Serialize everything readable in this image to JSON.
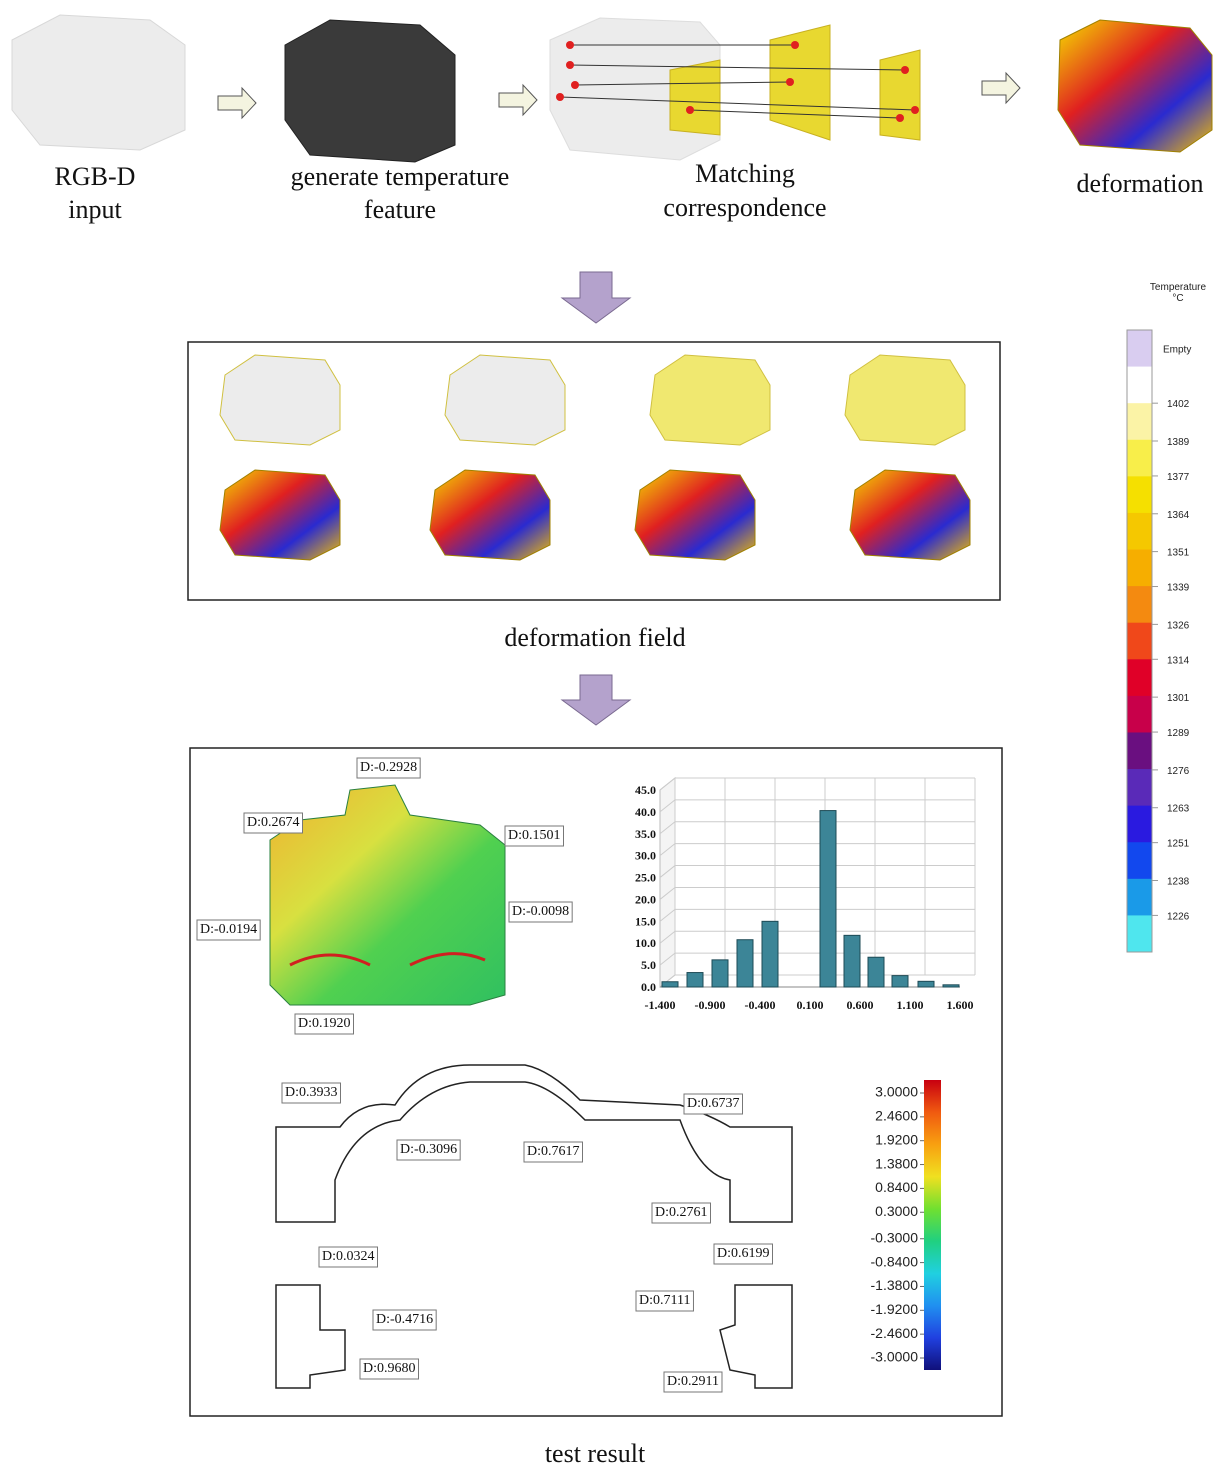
{
  "pipeline": {
    "steps": [
      {
        "lines": [
          "RGB-D",
          "input"
        ]
      },
      {
        "lines": [
          "generate temperature",
          "feature"
        ]
      },
      {
        "lines": [
          "Matching",
          "correspondence"
        ]
      },
      {
        "lines": [
          "deformation"
        ]
      }
    ]
  },
  "deformation_field": {
    "caption": "deformation field"
  },
  "temperature_scale": {
    "title": [
      "Temperature",
      "°C"
    ],
    "empty_label": "Empty",
    "ticks": [
      1402,
      1389,
      1377,
      1364,
      1351,
      1339,
      1326,
      1314,
      1301,
      1289,
      1276,
      1263,
      1251,
      1238,
      1226
    ],
    "colors": [
      "#d9cdf0",
      "#ffffff",
      "#fbf3a6",
      "#f8ee4a",
      "#f5e000",
      "#f5c800",
      "#f6ae00",
      "#f48a10",
      "#f0481a",
      "#e00028",
      "#c8004a",
      "#6a0f80",
      "#5a2ab8",
      "#2a1ae0",
      "#1248ee",
      "#1a9ae8",
      "#4fe6ee"
    ]
  },
  "test_result": {
    "caption": "test result",
    "annotations": [
      "D:-0.2928",
      "D:0.2674",
      "D:0.1501",
      "D:-0.0194",
      "D:-0.0098",
      "D:0.1920",
      "D:0.3933",
      "D:-0.3096",
      "D:0.7617",
      "D:0.6737",
      "D:0.2761",
      "D:0.0324",
      "D:-0.4716",
      "D:0.9680",
      "D:0.6199",
      "D:0.7111",
      "D:0.2911"
    ],
    "histogram": {
      "type": "bar",
      "x": [
        -1.3,
        -1.05,
        -0.8,
        -0.55,
        -0.3,
        0.28,
        0.52,
        0.76,
        1.0,
        1.26,
        1.51
      ],
      "values": [
        1.2,
        3.3,
        6.2,
        10.8,
        15.0,
        40.3,
        11.8,
        6.8,
        2.6,
        1.3,
        0.5
      ],
      "color": "#3c8597",
      "xlim": [
        -1.4,
        1.6
      ],
      "ylim": [
        0,
        45
      ],
      "grid": true,
      "xticks": [
        {
          "value": -1.4,
          "label": "-1.400"
        },
        {
          "value": -0.9,
          "label": "-0.900"
        },
        {
          "value": -0.4,
          "label": "-0.400"
        },
        {
          "value": 0.1,
          "label": "0.100"
        },
        {
          "value": 0.6,
          "label": "0.600"
        },
        {
          "value": 1.1,
          "label": "1.100"
        },
        {
          "value": 1.6,
          "label": "1.600"
        }
      ],
      "yticks": [
        {
          "value": 0,
          "label": "0.0"
        },
        {
          "value": 5,
          "label": "5.0"
        },
        {
          "value": 10,
          "label": "10.0"
        },
        {
          "value": 15,
          "label": "15.0"
        },
        {
          "value": 20,
          "label": "20.0"
        },
        {
          "value": 25,
          "label": "25.0"
        },
        {
          "value": 30,
          "label": "30.0"
        },
        {
          "value": 35,
          "label": "35.0"
        },
        {
          "value": 40,
          "label": "40.0"
        },
        {
          "value": 45,
          "label": "45.0"
        }
      ]
    },
    "deviation_scale": {
      "ticks": [
        {
          "value": 3,
          "label": "3.0000"
        },
        {
          "value": 2.46,
          "label": "2.4600"
        },
        {
          "value": 1.92,
          "label": "1.9200"
        },
        {
          "value": 1.38,
          "label": "1.3800"
        },
        {
          "value": 0.84,
          "label": "0.8400"
        },
        {
          "value": 0.3,
          "label": "0.3000"
        },
        {
          "value": -0.3,
          "label": "-0.3000"
        },
        {
          "value": -0.84,
          "label": "-0.8400"
        },
        {
          "value": -1.38,
          "label": "-1.3800"
        },
        {
          "value": -1.92,
          "label": "-1.9200"
        },
        {
          "value": -2.46,
          "label": "-2.4600"
        },
        {
          "value": -3,
          "label": "-3.0000"
        }
      ],
      "colors": [
        "#c80010",
        "#f05a10",
        "#f8a010",
        "#f0e020",
        "#70e030",
        "#20d080",
        "#20d0e0",
        "#2090f0",
        "#2040e0",
        "#10107a"
      ]
    }
  }
}
